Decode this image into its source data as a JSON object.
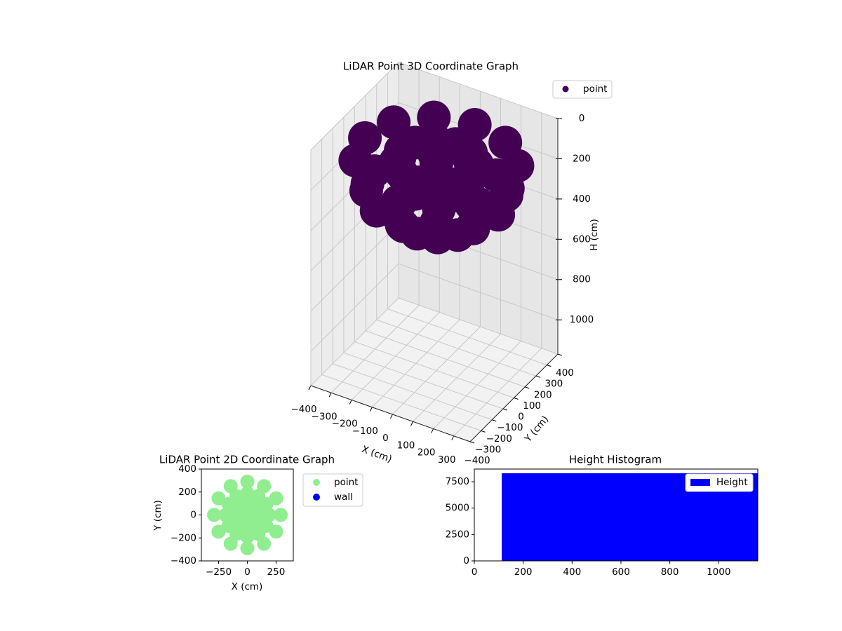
{
  "chart_data": [
    {
      "type": "scatter3d",
      "title": "LiDAR Point 3D Coordinate Graph",
      "xlabel": "X (cm)",
      "ylabel": "Y (cm)",
      "zlabel": "H (cm)",
      "legend_loc": "upper right",
      "grid": true,
      "z_inverted": true,
      "xlim": [
        -400,
        380
      ],
      "ylim": [
        -400,
        400
      ],
      "zlim": [
        0,
        1170
      ],
      "xticks": [
        {
          "value": -400,
          "label": "−400"
        },
        {
          "value": -300,
          "label": "−300"
        },
        {
          "value": -200,
          "label": "−200"
        },
        {
          "value": -100,
          "label": "−100"
        },
        0,
        100,
        200,
        300
      ],
      "yticks": [
        {
          "value": -400,
          "label": "−400"
        },
        {
          "value": -300,
          "label": "−300"
        },
        {
          "value": -200,
          "label": "−200"
        },
        {
          "value": -100,
          "label": "−100"
        },
        0,
        100,
        200,
        300,
        400
      ],
      "zticks": [
        0,
        200,
        400,
        600,
        800,
        1000
      ],
      "series": [
        {
          "name": "point",
          "color": "#440154",
          "x": [
            350,
            303,
            175,
            0,
            -175,
            -303,
            -350,
            -303,
            -175,
            0,
            175,
            303,
            303,
            262,
            152,
            0,
            -152,
            -262,
            -303,
            -262,
            -152,
            0,
            152,
            262,
            175,
            152,
            88,
            0,
            -88,
            -152,
            -175,
            -152,
            -88,
            0,
            88,
            152,
            175,
            152,
            88,
            0,
            -88,
            -152,
            -175,
            -152,
            -88,
            0,
            88,
            152,
            0,
            0
          ],
          "y": [
            0,
            175,
            303,
            350,
            303,
            175,
            0,
            -175,
            -303,
            -350,
            -303,
            -175,
            0,
            152,
            262,
            303,
            262,
            152,
            0,
            -152,
            -262,
            -303,
            -262,
            -152,
            0,
            88,
            152,
            175,
            152,
            88,
            0,
            -88,
            -152,
            -175,
            -152,
            -88,
            0,
            88,
            152,
            175,
            152,
            88,
            0,
            -88,
            -152,
            -175,
            -152,
            -88,
            0,
            0
          ],
          "z": [
            140,
            140,
            140,
            140,
            140,
            140,
            140,
            140,
            140,
            140,
            140,
            140,
            288,
            288,
            288,
            288,
            288,
            288,
            288,
            288,
            288,
            288,
            288,
            288,
            395,
            395,
            395,
            395,
            395,
            395,
            395,
            395,
            395,
            395,
            395,
            395,
            140,
            140,
            140,
            140,
            140,
            140,
            140,
            140,
            140,
            140,
            140,
            140,
            435,
            140
          ]
        }
      ]
    },
    {
      "type": "scatter",
      "title": "LiDAR Point 2D Coordinate Graph",
      "xlabel": "X (cm)",
      "ylabel": "Y (cm)",
      "xlim": [
        -400,
        400
      ],
      "ylim": [
        -400,
        400
      ],
      "xticks": [
        {
          "value": -250,
          "label": "−250"
        },
        0,
        250
      ],
      "yticks": [
        {
          "value": -400,
          "label": "−400"
        },
        {
          "value": -200,
          "label": "−200"
        },
        0,
        200,
        400
      ],
      "series": [
        {
          "name": "point",
          "color": "#90ee90",
          "x": [
            290,
            251,
            145,
            0,
            -145,
            -251,
            -290,
            -251,
            -145,
            0,
            145,
            251,
            190,
            165,
            95,
            0,
            -95,
            -165,
            -190,
            -165,
            -95,
            0,
            95,
            165,
            95,
            82,
            48,
            0,
            -48,
            -82,
            -95,
            -82,
            -48,
            0,
            48,
            82,
            0
          ],
          "y": [
            0,
            145,
            251,
            290,
            251,
            145,
            0,
            -145,
            -251,
            -290,
            -251,
            -145,
            0,
            95,
            165,
            190,
            165,
            95,
            0,
            -95,
            -165,
            -190,
            -165,
            -95,
            0,
            48,
            82,
            95,
            82,
            48,
            0,
            -48,
            -82,
            -95,
            -82,
            -48,
            0
          ]
        },
        {
          "name": "wall",
          "color": "#0000ff",
          "x": [],
          "y": []
        }
      ]
    },
    {
      "type": "histogram",
      "title": "Height Histogram",
      "name": "Height",
      "color": "#0000ff",
      "legend_loc": "upper right",
      "bins": [
        112,
        1160
      ],
      "counts": [
        8300
      ],
      "xlim": [
        0,
        1160
      ],
      "ylim": [
        0,
        8700
      ],
      "xticks": [
        0,
        200,
        400,
        600,
        800,
        1000
      ],
      "yticks": [
        0,
        2500,
        5000,
        7500
      ]
    }
  ]
}
